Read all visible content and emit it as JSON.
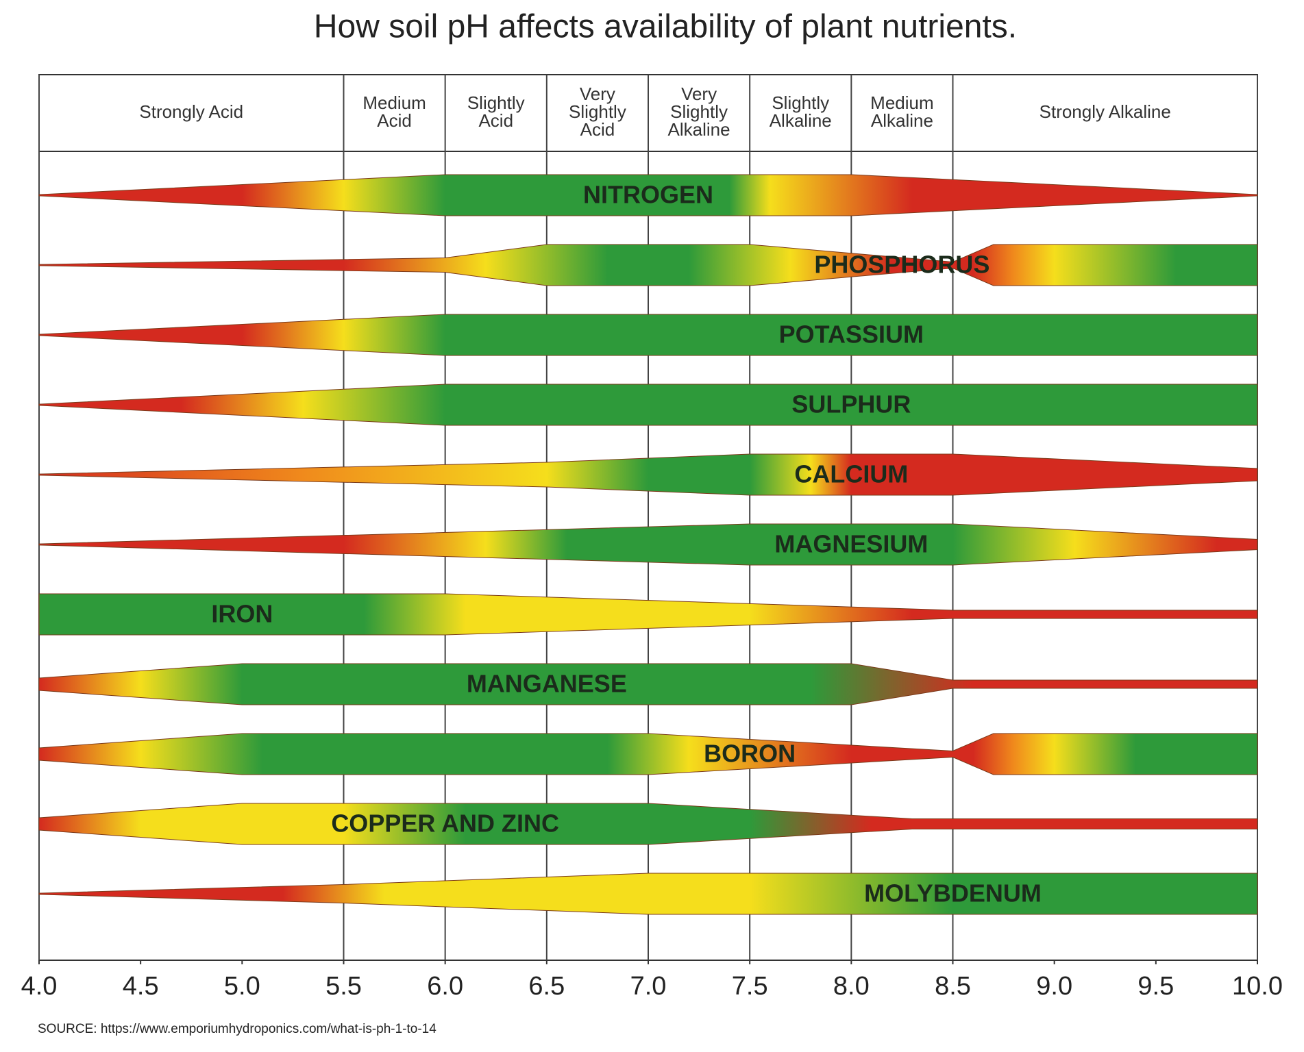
{
  "chart_data": {
    "type": "availability-bands",
    "title": "How soil pH affects availability of plant nutrients.",
    "source": "SOURCE: https://www.emporiumhydroponics.com/what-is-ph-1-to-14",
    "xlim": [
      4,
      10
    ],
    "xticks": [
      {
        "value": 4,
        "label": "4.0"
      },
      {
        "value": 4.5,
        "label": "4.5"
      },
      {
        "value": 5,
        "label": "5.0"
      },
      {
        "value": 5.5,
        "label": "5.5"
      },
      {
        "value": 6,
        "label": "6.0"
      },
      {
        "value": 6.5,
        "label": "6.5"
      },
      {
        "value": 7,
        "label": "7.0"
      },
      {
        "value": 7.5,
        "label": "7.5"
      },
      {
        "value": 8,
        "label": "8.0"
      },
      {
        "value": 8.5,
        "label": "8.5"
      },
      {
        "value": 9,
        "label": "9.0"
      },
      {
        "value": 9.5,
        "label": "9.5"
      },
      {
        "value": 10,
        "label": "10.0"
      }
    ],
    "zone_edges": [
      4,
      5.5,
      6,
      6.5,
      7,
      7.5,
      8,
      8.5,
      10
    ],
    "zones": [
      {
        "label": [
          "Strongly Acid"
        ]
      },
      {
        "label": [
          "Medium",
          "Acid"
        ]
      },
      {
        "label": [
          "Slightly",
          "Acid"
        ]
      },
      {
        "label": [
          "Very",
          "Slightly",
          "Acid"
        ]
      },
      {
        "label": [
          "Very",
          "Slightly",
          "Alkaline"
        ]
      },
      {
        "label": [
          "Slightly",
          "Alkaline"
        ]
      },
      {
        "label": [
          "Medium",
          "Alkaline"
        ]
      },
      {
        "label": [
          "Strongly Alkaline"
        ]
      }
    ],
    "nutrients": [
      {
        "name": "NITROGEN",
        "x": [
          4,
          6,
          8,
          10
        ],
        "widths": [
          0.03,
          1,
          1,
          0.03
        ],
        "stops": {
          "x": [
            4,
            5,
            5.5,
            6,
            7.4,
            7.6,
            8.3,
            10
          ],
          "colors": [
            "#d42a1f",
            "#d42a1f",
            "#f5de1c",
            "#2e9a3a",
            "#2e9a3a",
            "#f5de1c",
            "#d42a1f",
            "#d42a1f"
          ]
        }
      },
      {
        "name": "PHOSPHORUS",
        "x": [
          4,
          6,
          6.5,
          7.5,
          8.5,
          8.7,
          10
        ],
        "widths": [
          0.03,
          0.35,
          1,
          1,
          0.15,
          1,
          1
        ],
        "stops": {
          "x": [
            4,
            5.5,
            6.2,
            6.8,
            7.2,
            7.7,
            8.2,
            8.6,
            8.8,
            9,
            9.6,
            10
          ],
          "colors": [
            "#d42a1f",
            "#d42a1f",
            "#f5de1c",
            "#2e9a3a",
            "#2e9a3a",
            "#f5de1c",
            "#d42a1f",
            "#d42a1f",
            "#f08a1c",
            "#f5de1c",
            "#2e9a3a",
            "#2e9a3a"
          ]
        }
      },
      {
        "name": "POTASSIUM",
        "x": [
          4,
          6,
          10
        ],
        "widths": [
          0.03,
          1,
          1
        ],
        "stops": {
          "x": [
            4,
            5,
            5.5,
            6,
            10
          ],
          "colors": [
            "#d42a1f",
            "#d42a1f",
            "#f5de1c",
            "#2e9a3a",
            "#2e9a3a"
          ]
        }
      },
      {
        "name": "SULPHUR",
        "x": [
          4,
          6,
          10
        ],
        "widths": [
          0.03,
          1,
          1
        ],
        "stops": {
          "x": [
            4,
            4.7,
            5.3,
            6,
            10
          ],
          "colors": [
            "#d42a1f",
            "#d42a1f",
            "#f5de1c",
            "#2e9a3a",
            "#2e9a3a"
          ]
        }
      },
      {
        "name": "CALCIUM",
        "x": [
          4,
          6.5,
          7.5,
          8.5,
          10
        ],
        "widths": [
          0.03,
          0.6,
          1,
          1,
          0.3
        ],
        "stops": {
          "x": [
            4,
            5.3,
            6.5,
            7,
            7.5,
            7.8,
            8,
            10
          ],
          "colors": [
            "#d42a1f",
            "#f08a1c",
            "#f5de1c",
            "#2e9a3a",
            "#2e9a3a",
            "#f5de1c",
            "#d42a1f",
            "#d42a1f"
          ]
        }
      },
      {
        "name": "MAGNESIUM",
        "x": [
          4,
          7.5,
          8.5,
          10
        ],
        "widths": [
          0.03,
          1,
          1,
          0.25
        ],
        "stops": {
          "x": [
            4,
            5.5,
            6.2,
            6.6,
            8.5,
            9.1,
            9.8,
            10
          ],
          "colors": [
            "#d42a1f",
            "#d42a1f",
            "#f5de1c",
            "#2e9a3a",
            "#2e9a3a",
            "#f5de1c",
            "#d42a1f",
            "#d42a1f"
          ]
        }
      },
      {
        "name": "IRON",
        "x": [
          4,
          6,
          8.5,
          10
        ],
        "widths": [
          1,
          1,
          0.2,
          0.2
        ],
        "stops": {
          "x": [
            4,
            5.6,
            6.1,
            7.5,
            8.3,
            10
          ],
          "colors": [
            "#2e9a3a",
            "#2e9a3a",
            "#f5de1c",
            "#f5de1c",
            "#d42a1f",
            "#d42a1f"
          ]
        }
      },
      {
        "name": "MANGANESE",
        "x": [
          4,
          5,
          8,
          8.5,
          10
        ],
        "widths": [
          0.3,
          1,
          1,
          0.2,
          0.2
        ],
        "stops": {
          "x": [
            4,
            4.5,
            5,
            7.8,
            8.6,
            10
          ],
          "colors": [
            "#d42a1f",
            "#f5de1c",
            "#2e9a3a",
            "#2e9a3a",
            "#d42a1f",
            "#d42a1f"
          ]
        }
      },
      {
        "name": "BORON",
        "x": [
          4,
          5,
          7,
          8.5,
          8.7,
          10
        ],
        "widths": [
          0.3,
          1,
          1,
          0.15,
          1,
          1
        ],
        "stops": {
          "x": [
            4,
            4.5,
            5.1,
            6.8,
            7.2,
            8,
            8.6,
            8.8,
            9,
            9.4,
            10
          ],
          "colors": [
            "#d42a1f",
            "#f5de1c",
            "#2e9a3a",
            "#2e9a3a",
            "#f5de1c",
            "#d42a1f",
            "#d42a1f",
            "#f08a1c",
            "#f5de1c",
            "#2e9a3a",
            "#2e9a3a"
          ]
        }
      },
      {
        "name": "COPPER AND ZINC",
        "x": [
          4,
          5,
          7,
          8.3,
          10
        ],
        "widths": [
          0.3,
          1,
          1,
          0.25,
          0.25
        ],
        "stops": {
          "x": [
            4,
            4.5,
            5.5,
            6.1,
            7.5,
            8.1,
            10
          ],
          "colors": [
            "#d42a1f",
            "#f5de1c",
            "#f5de1c",
            "#2e9a3a",
            "#2e9a3a",
            "#d42a1f",
            "#d42a1f"
          ]
        }
      },
      {
        "name": "MOLYBDENUM",
        "x": [
          4,
          5.5,
          7,
          10
        ],
        "widths": [
          0.03,
          0.45,
          1,
          1
        ],
        "stops": {
          "x": [
            4,
            5.2,
            5.7,
            7.5,
            8.5,
            10
          ],
          "colors": [
            "#d42a1f",
            "#d42a1f",
            "#f5de1c",
            "#f5de1c",
            "#2e9a3a",
            "#2e9a3a"
          ]
        }
      }
    ]
  }
}
